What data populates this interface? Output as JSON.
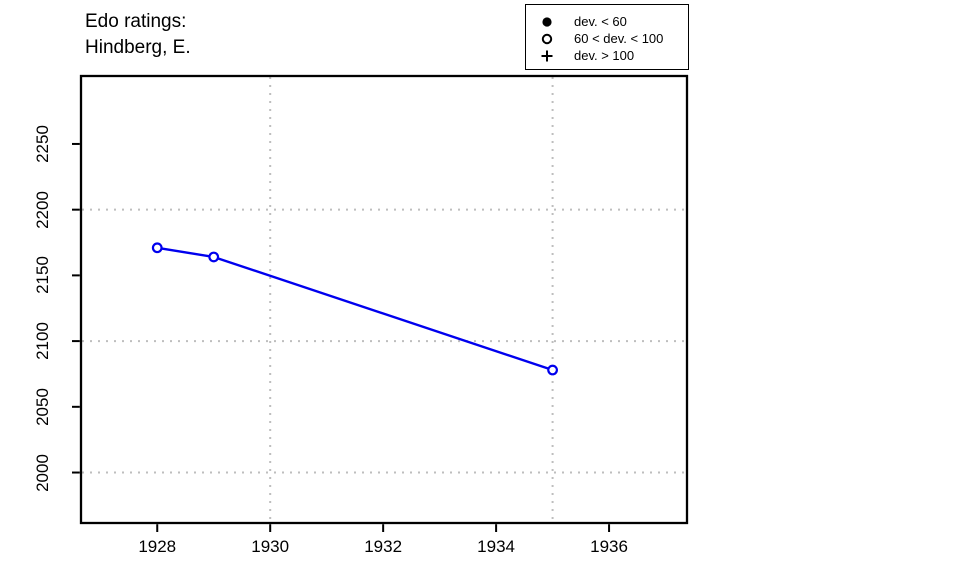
{
  "title": {
    "line1": "Edo ratings:",
    "line2": "Hindberg, E."
  },
  "legend": {
    "items": [
      {
        "symbol": "filled-circle",
        "label": "dev. < 60"
      },
      {
        "symbol": "open-circle",
        "label": "60 < dev. < 100"
      },
      {
        "symbol": "plus",
        "label": "dev. > 100"
      }
    ]
  },
  "colors": {
    "series": "#0000EE",
    "grid": "#BEBEBE",
    "axis": "#000000",
    "background": "#FFFFFF"
  },
  "chart_data": {
    "type": "line",
    "title": "Edo ratings: Hindberg, E.",
    "xlabel": "",
    "ylabel": "",
    "series": [
      {
        "name": "Edo rating (Hindberg, E.)",
        "x": [
          1928,
          1929,
          1935
        ],
        "y": [
          2171,
          2164,
          2078
        ],
        "point_style": "open-circle",
        "point_meaning": "60 < dev. < 100"
      }
    ],
    "x_ticks": [
      1928,
      1930,
      1932,
      1934,
      1936
    ],
    "y_ticks": [
      2000,
      2050,
      2100,
      2150,
      2200,
      2250
    ],
    "x_gridlines": [
      1930,
      1935
    ],
    "y_gridlines": [
      2000,
      2100,
      2200
    ],
    "xlim": [
      1926.65,
      1937.38
    ],
    "ylim": [
      1961.6,
      2301.7
    ],
    "grid_style": "dotted",
    "legend_position": "top-right"
  }
}
